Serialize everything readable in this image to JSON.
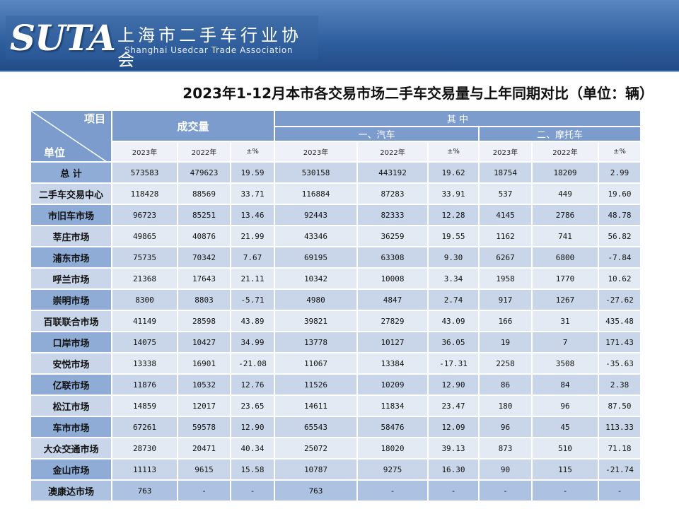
{
  "header": {
    "logo_en_big": "SUTA",
    "logo_cn": "上海市二手车行业协会",
    "logo_en_small": "Shanghai Usedcar Trade Association"
  },
  "title": "2023年1-12月本市各交易市场二手车交易量与上年同期对比（单位：辆）",
  "table": {
    "corner_top": "项目",
    "corner_bottom": "单位",
    "group_volume": "成交量",
    "group_of_which": "其  中",
    "sub_cars": "一、汽车",
    "sub_motorcycles": "二、摩托车",
    "col_headers": [
      "2023年",
      "2022年",
      "±%",
      "2023年",
      "2022年",
      "±%",
      "2023年",
      "2022年",
      "±%"
    ],
    "rows": [
      {
        "name": "总  计",
        "values": [
          "573583",
          "479623",
          "19.59",
          "530158",
          "443192",
          "19.62",
          "18754",
          "18209",
          "2.99"
        ]
      },
      {
        "name": "二手车交易中心",
        "values": [
          "118428",
          "88569",
          "33.71",
          "116884",
          "87283",
          "33.91",
          "537",
          "449",
          "19.60"
        ]
      },
      {
        "name": "市旧车市场",
        "values": [
          "96723",
          "85251",
          "13.46",
          "92443",
          "82333",
          "12.28",
          "4145",
          "2786",
          "48.78"
        ]
      },
      {
        "name": "莘庄市场",
        "values": [
          "49865",
          "40876",
          "21.99",
          "43346",
          "36259",
          "19.55",
          "1162",
          "741",
          "56.82"
        ]
      },
      {
        "name": "浦东市场",
        "values": [
          "75735",
          "70342",
          "7.67",
          "69195",
          "63308",
          "9.30",
          "6267",
          "6800",
          "-7.84"
        ]
      },
      {
        "name": "呼兰市场",
        "values": [
          "21368",
          "17643",
          "21.11",
          "10342",
          "10008",
          "3.34",
          "1958",
          "1770",
          "10.62"
        ]
      },
      {
        "name": "崇明市场",
        "values": [
          "8300",
          "8803",
          "-5.71",
          "4980",
          "4847",
          "2.74",
          "917",
          "1267",
          "-27.62"
        ]
      },
      {
        "name": "百联联合市场",
        "values": [
          "41149",
          "28598",
          "43.89",
          "39821",
          "27829",
          "43.09",
          "166",
          "31",
          "435.48"
        ]
      },
      {
        "name": "口岸市场",
        "values": [
          "14075",
          "10427",
          "34.99",
          "13778",
          "10127",
          "36.05",
          "19",
          "7",
          "171.43"
        ]
      },
      {
        "name": "安悦市场",
        "values": [
          "13338",
          "16901",
          "-21.08",
          "11067",
          "13384",
          "-17.31",
          "2258",
          "3508",
          "-35.63"
        ]
      },
      {
        "name": "亿联市场",
        "values": [
          "11876",
          "10532",
          "12.76",
          "11526",
          "10209",
          "12.90",
          "86",
          "84",
          "2.38"
        ]
      },
      {
        "name": "松江市场",
        "values": [
          "14859",
          "12017",
          "23.65",
          "14611",
          "11834",
          "23.47",
          "180",
          "96",
          "87.50"
        ]
      },
      {
        "name": "车市市场",
        "values": [
          "67261",
          "59578",
          "12.90",
          "65543",
          "58476",
          "12.09",
          "96",
          "45",
          "113.33"
        ]
      },
      {
        "name": "大众交通市场",
        "values": [
          "28730",
          "20471",
          "40.34",
          "25072",
          "18020",
          "39.13",
          "873",
          "510",
          "71.18"
        ]
      },
      {
        "name": "金山市场",
        "values": [
          "11113",
          "9615",
          "15.58",
          "10787",
          "9275",
          "16.30",
          "90",
          "115",
          "-21.74"
        ]
      },
      {
        "name": "澳康达市场",
        "values": [
          "763",
          "-",
          "-",
          "763",
          "-",
          "-",
          "-",
          "-",
          "-"
        ]
      }
    ]
  }
}
